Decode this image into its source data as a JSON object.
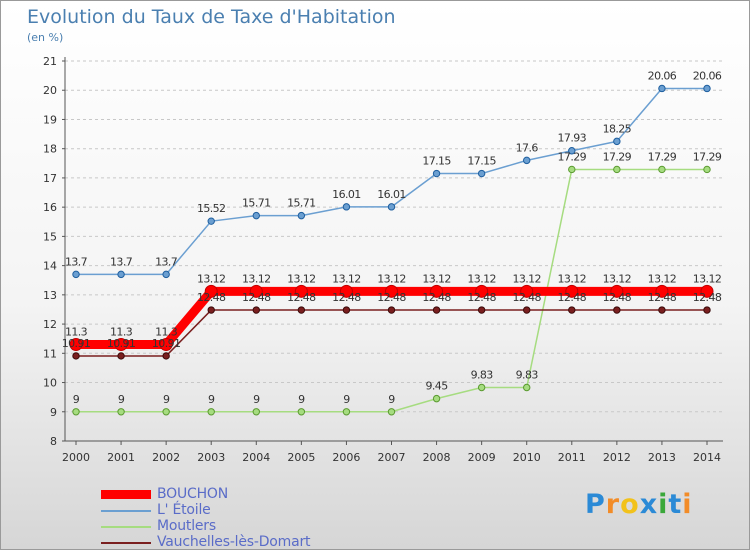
{
  "header": {
    "title": "Evolution du Taux de Taxe d'Habitation",
    "unit": "(en %)"
  },
  "chart_data": {
    "type": "line",
    "title": "Evolution du Taux de Taxe d'Habitation",
    "ylabel": "(en %)",
    "xlabel": "",
    "ylim": [
      8,
      21
    ],
    "y_ticks": [
      8,
      9,
      10,
      11,
      12,
      13,
      14,
      15,
      16,
      17,
      18,
      19,
      20,
      21
    ],
    "categories": [
      "2000",
      "2001",
      "2002",
      "2003",
      "2004",
      "2005",
      "2006",
      "2007",
      "2008",
      "2009",
      "2010",
      "2011",
      "2012",
      "2013",
      "2014"
    ],
    "grid": "horizontal dashed",
    "legend_position": "bottom-left",
    "series": [
      {
        "name": "BOUCHON",
        "color": "#ff0000",
        "values": [
          11.3,
          11.3,
          11.3,
          13.12,
          13.12,
          13.12,
          13.12,
          13.12,
          13.12,
          13.12,
          13.12,
          13.12,
          13.12,
          13.12,
          13.12
        ],
        "labels": [
          "11.3",
          "11.3",
          "11.3",
          "13.12",
          "13.12",
          "13.12",
          "13.12",
          "13.12",
          "13.12",
          "13.12",
          "13.12",
          "13.12",
          "13.12",
          "13.12",
          "13.12"
        ]
      },
      {
        "name": "L' Étoile",
        "color": "#6b9fd1",
        "values": [
          13.7,
          13.7,
          13.7,
          15.52,
          15.71,
          15.71,
          16.01,
          16.01,
          17.15,
          17.15,
          17.6,
          17.93,
          18.25,
          20.06,
          20.06
        ],
        "labels": [
          "13.7",
          "13.7",
          "13.7",
          "15.52",
          "15.71",
          "15.71",
          "16.01",
          "16.01",
          "17.15",
          "17.15",
          "17.6",
          "17.93",
          "18.25",
          "20.06",
          "20.06"
        ]
      },
      {
        "name": "Moutlers",
        "color": "#a6dc80",
        "values": [
          9,
          9,
          9,
          9,
          9,
          9,
          9,
          9,
          9.45,
          9.83,
          9.83,
          17.29,
          17.29,
          17.29,
          17.29
        ],
        "labels": [
          "9",
          "9",
          "9",
          "9",
          "9",
          "9",
          "9",
          "9",
          "9.45",
          "9.83",
          "9.83",
          "17.29",
          "17.29",
          "17.29",
          "17.29"
        ]
      },
      {
        "name": "Vauchelles-lès-Domart",
        "color": "#7a1f1f",
        "values": [
          10.91,
          10.91,
          10.91,
          12.48,
          12.48,
          12.48,
          12.48,
          12.48,
          12.48,
          12.48,
          12.48,
          12.48,
          12.48,
          12.48,
          12.48
        ],
        "labels": [
          "10.91",
          "10.91",
          "10.91",
          "12.48",
          "12.48",
          "12.48",
          "12.48",
          "12.48",
          "12.48",
          "12.48",
          "12.48",
          "12.48",
          "12.48",
          "12.48",
          "12.48"
        ]
      }
    ]
  },
  "legend": {
    "items": [
      "BOUCHON",
      "L' Étoile",
      "Moutlers",
      "Vauchelles-lès-Domart"
    ]
  },
  "logo": {
    "letters": [
      "P",
      "r",
      "o",
      "x",
      "i",
      "t",
      "i"
    ],
    "colors": [
      "#2b8ad6",
      "#f28c28",
      "#f2c21b",
      "#2b8ad6",
      "#3aa83a",
      "#2b8ad6",
      "#f28c28"
    ]
  }
}
